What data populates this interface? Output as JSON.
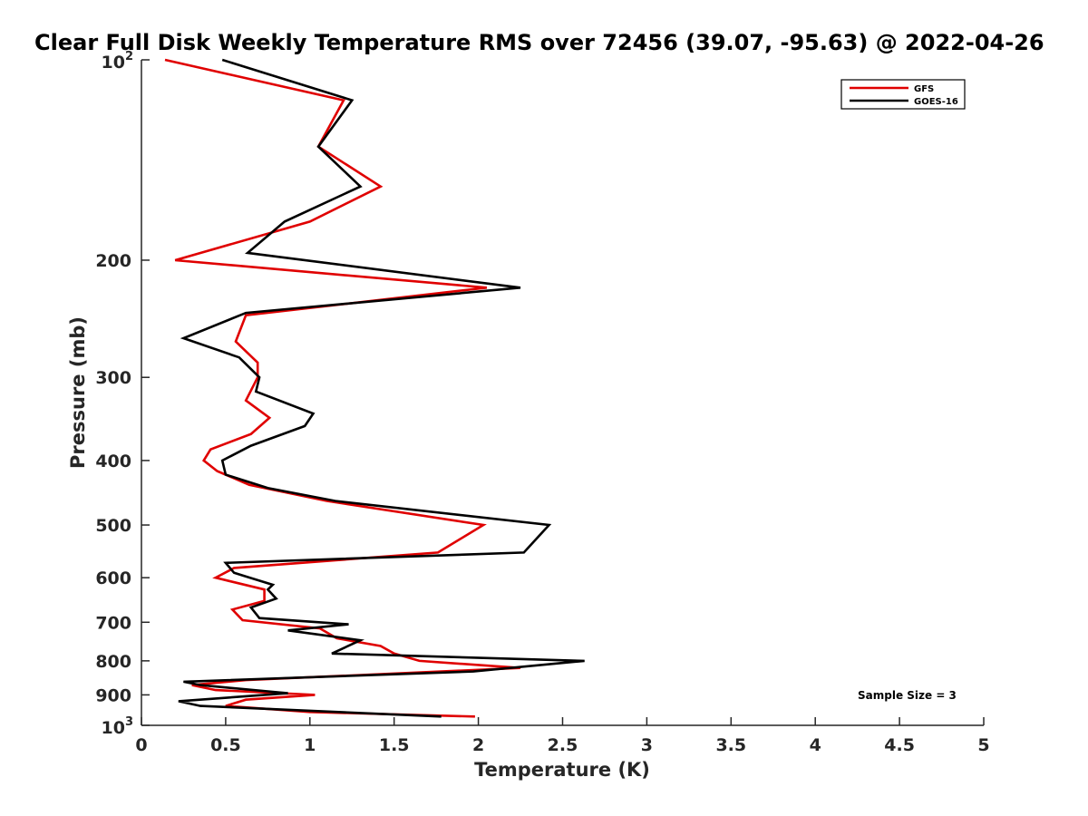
{
  "chart_data": {
    "type": "line",
    "title": "Clear Full Disk Weekly Temperature RMS over 72456 (39.07, -95.63) @ 2022-04-26",
    "xlabel": "Temperature (K)",
    "ylabel": "Pressure (mb)",
    "xlim": [
      0,
      5
    ],
    "ylim": [
      100,
      1000
    ],
    "y_scale": "log",
    "y_reversed": true,
    "grid": false,
    "legend_position": "top-right",
    "x_ticks": [
      0,
      0.5,
      1,
      1.5,
      2,
      2.5,
      3,
      3.5,
      4,
      4.5,
      5
    ],
    "x_tick_labels": [
      "0",
      "0.5",
      "1",
      "1.5",
      "2",
      "2.5",
      "3",
      "3.5",
      "4",
      "4.5",
      "5"
    ],
    "y_ticks": [
      {
        "value": 100,
        "base": "10",
        "exp": "2"
      },
      {
        "value": 200,
        "label": "200"
      },
      {
        "value": 300,
        "label": "300"
      },
      {
        "value": 400,
        "label": "400"
      },
      {
        "value": 500,
        "label": "500"
      },
      {
        "value": 600,
        "label": "600"
      },
      {
        "value": 700,
        "label": "700"
      },
      {
        "value": 800,
        "label": "800"
      },
      {
        "value": 900,
        "label": "900"
      },
      {
        "value": 1000,
        "base": "10",
        "exp": "3"
      }
    ],
    "series": [
      {
        "name": "GFS",
        "color": "#e00000",
        "points": [
          [
            0.14,
            100
          ],
          [
            1.2,
            115
          ],
          [
            1.05,
            135
          ],
          [
            1.42,
            155
          ],
          [
            1.0,
            175
          ],
          [
            0.2,
            200
          ],
          [
            2.05,
            220
          ],
          [
            0.62,
            242
          ],
          [
            0.56,
            265
          ],
          [
            0.69,
            285
          ],
          [
            0.69,
            300
          ],
          [
            0.62,
            325
          ],
          [
            0.76,
            345
          ],
          [
            0.65,
            365
          ],
          [
            0.41,
            385
          ],
          [
            0.37,
            400
          ],
          [
            0.45,
            415
          ],
          [
            0.64,
            435
          ],
          [
            1.1,
            460
          ],
          [
            2.03,
            500
          ],
          [
            1.76,
            550
          ],
          [
            0.55,
            580
          ],
          [
            0.44,
            600
          ],
          [
            0.73,
            625
          ],
          [
            0.73,
            650
          ],
          [
            0.54,
            670
          ],
          [
            0.6,
            695
          ],
          [
            1.06,
            715
          ],
          [
            1.16,
            740
          ],
          [
            1.42,
            760
          ],
          [
            1.5,
            780
          ],
          [
            1.65,
            800
          ],
          [
            2.25,
            820
          ],
          [
            0.62,
            855
          ],
          [
            0.3,
            870
          ],
          [
            0.44,
            885
          ],
          [
            1.03,
            900
          ],
          [
            0.62,
            915
          ],
          [
            0.5,
            935
          ],
          [
            1.0,
            955
          ],
          [
            1.98,
            970
          ]
        ]
      },
      {
        "name": "GOES-16",
        "color": "#000000",
        "points": [
          [
            0.48,
            100
          ],
          [
            1.25,
            115
          ],
          [
            1.05,
            135
          ],
          [
            1.3,
            155
          ],
          [
            0.85,
            175
          ],
          [
            0.63,
            195
          ],
          [
            2.25,
            220
          ],
          [
            0.62,
            240
          ],
          [
            0.25,
            262
          ],
          [
            0.58,
            280
          ],
          [
            0.7,
            300
          ],
          [
            0.68,
            315
          ],
          [
            1.02,
            340
          ],
          [
            0.97,
            355
          ],
          [
            0.65,
            380
          ],
          [
            0.48,
            400
          ],
          [
            0.5,
            420
          ],
          [
            0.75,
            440
          ],
          [
            1.15,
            460
          ],
          [
            2.42,
            500
          ],
          [
            2.27,
            550
          ],
          [
            0.5,
            570
          ],
          [
            0.55,
            590
          ],
          [
            0.78,
            615
          ],
          [
            0.75,
            625
          ],
          [
            0.8,
            645
          ],
          [
            0.65,
            665
          ],
          [
            0.7,
            690
          ],
          [
            1.23,
            705
          ],
          [
            0.87,
            720
          ],
          [
            1.3,
            745
          ],
          [
            1.13,
            780
          ],
          [
            2.63,
            800
          ],
          [
            1.97,
            830
          ],
          [
            0.25,
            860
          ],
          [
            0.35,
            870
          ],
          [
            0.87,
            895
          ],
          [
            0.22,
            920
          ],
          [
            0.35,
            935
          ],
          [
            1.78,
            970
          ]
        ]
      }
    ],
    "annotations": [
      "Sample Size = 3"
    ]
  }
}
